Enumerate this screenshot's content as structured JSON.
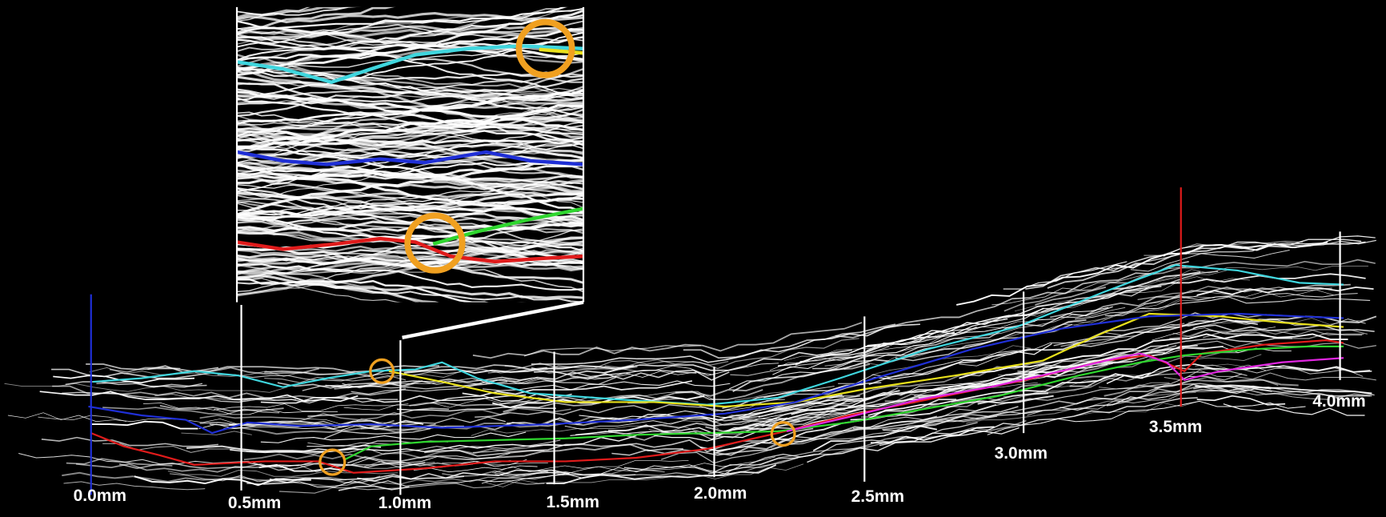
{
  "scale_labels": [
    "0.0mm",
    "0.5mm",
    "1.0mm",
    "1.5mm",
    "2.0mm",
    "2.5mm",
    "3.0mm",
    "3.5mm",
    "4.0mm"
  ]
}
